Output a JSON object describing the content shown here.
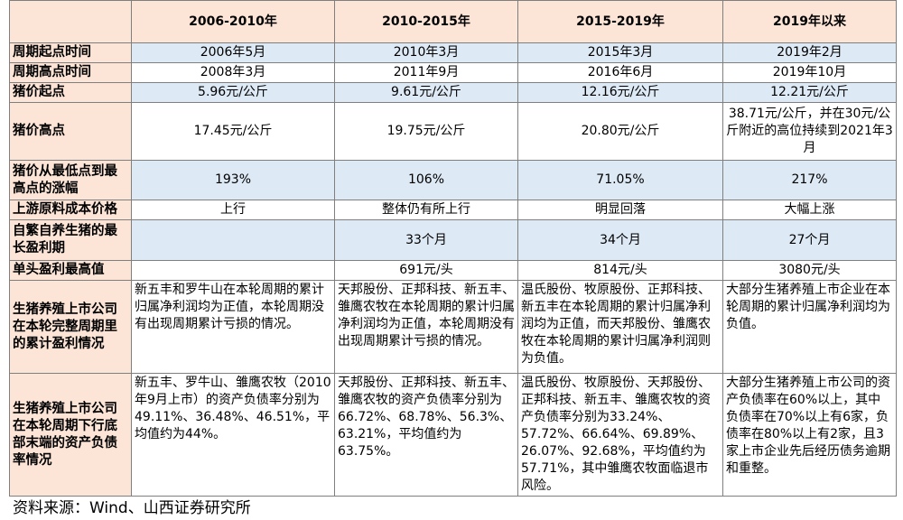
{
  "table": {
    "header": [
      "2006-2010年",
      "2010-2015年",
      "2015-2019年",
      "2019年以来"
    ],
    "rows": [
      [
        "周期起点时间",
        "2006年5月",
        "2010年3月",
        "2015年3月",
        "2019年2月"
      ],
      [
        "周期高点时间",
        "2008年3月",
        "2011年9月",
        "2016年6月",
        "2019年10月"
      ],
      [
        "猪价起点",
        "5.96元/公斤",
        "9.61元/公斤",
        "12.16元/公斤",
        "12.21元/公斤"
      ],
      [
        "猪价高点",
        "17.45元/公斤",
        "19.75元/公斤",
        "20.80元/公斤",
        "38.71元/公斤，并在30元/公斤附近的高位持续到2021年3月"
      ],
      [
        "猪价从最低点到最高点的涨幅",
        "193%",
        "106%",
        "71.05%",
        "217%"
      ],
      [
        "上游原料成本价格",
        "上行",
        "整体仍有所上行",
        "明显回落",
        "大幅上涨"
      ],
      [
        "自繁自养生猪的最长盈利期",
        null,
        "33个月",
        "34个月",
        "27个月"
      ],
      [
        "单头盈利最高值",
        null,
        "691元/头",
        "814元/头",
        "3080元/头"
      ],
      [
        "生猪养殖上市公司在本轮完整周期里的累计盈利情况",
        "新五丰和罗牛山在本轮周期的累计归属净利润均为正值，本轮周期没有出现周期累计亏损的情况。",
        "天邦股份、正邦科技、新五丰、雏鹰农牧在本轮周期的累计归属净利润均为正值，本轮周期没有出现周期累计亏损的情况。",
        "温氏股份、牧原股份、正邦科技、新五丰在本轮周期的累计归属净利润均为正值，而天邦股份、雏鹰农牧在本轮周期的累计归属净利润则为负值。",
        "大部分生猪养殖上市企业在本轮周期的累计归属净利润均为负值。"
      ],
      [
        "生猪养殖上市公司在本轮周期下行底部末端的资产负债率情况",
        "新五丰、罗牛山、雏鹰农牧（2010年9月上市）的资产负债率分别为49.11%、36.48%、46.51%，平均值约为44%。",
        "天邦股份、正邦科技、新五丰、雏鹰农牧的资产负债率分别为66.72%、68.78%、56.3%、63.21%，平均值约为63.75%。",
        "温氏股份、牧原股份、天邦股份、正邦科技、新五丰、雏鹰农牧的资产负债率分别为33.24%、57.72%、66.64%、69.89%、26.07%、92.68%，平均值约为57.71%，其中雏鹰农牧面临退市风险。",
        "大部分生猪养殖上市公司的资产负债率在60%以上，其中负债率在70%以上有6家，负债率在80%以上有2家，且3家上市企业先后经历债务逾期和重整。"
      ]
    ]
  },
  "source": "资料来源：Wind、山西证券研究所"
}
